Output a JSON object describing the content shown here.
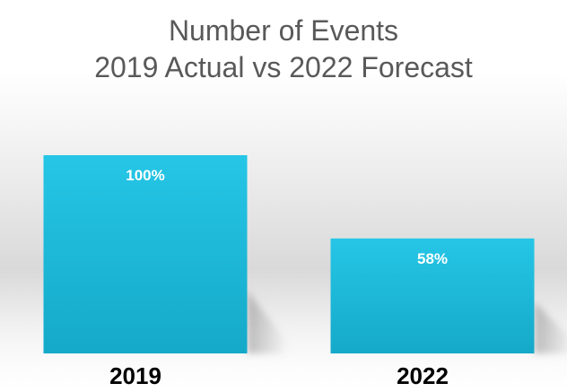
{
  "chart_data": {
    "type": "bar",
    "title": "Number of Events",
    "subtitle": "2019 Actual vs 2022 Forecast",
    "categories": [
      "2019",
      "2022"
    ],
    "values": [
      100,
      58
    ],
    "data_labels": [
      "100%",
      "58%"
    ],
    "ylim": [
      0,
      100
    ],
    "grid": false,
    "legend": "none",
    "colors": {
      "bar_top": "#26c6e6",
      "bar_bottom": "#15a9c9",
      "title": "#595959",
      "data_label": "#ffffff",
      "tick_label": "#000000"
    }
  }
}
